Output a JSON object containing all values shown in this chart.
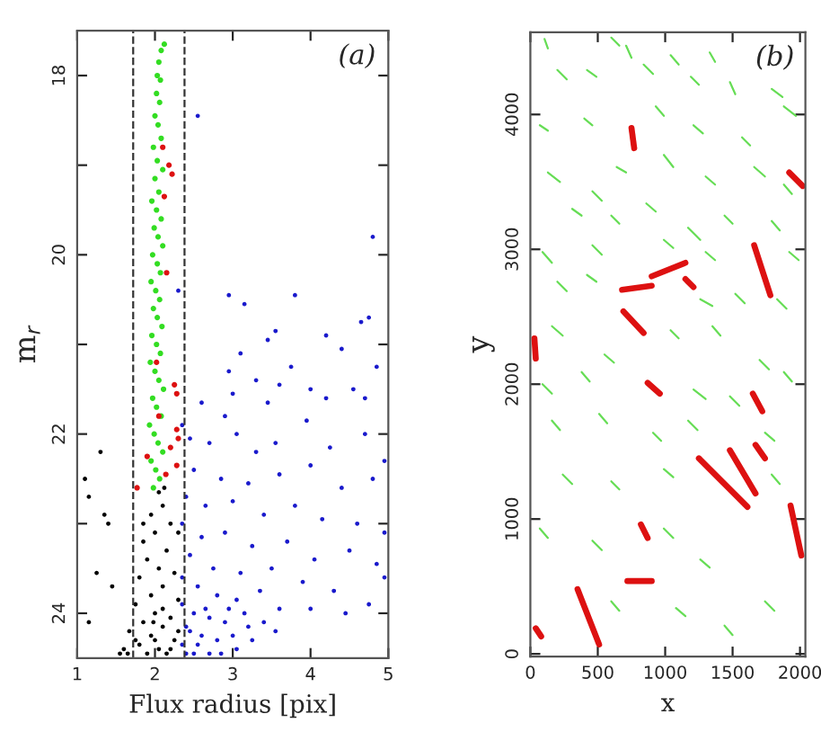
{
  "chart_data": [
    {
      "type": "scatter",
      "xlabel": "Flux radius [pix]",
      "ylabel": "m$_{r}$",
      "annotations": [
        "(a)"
      ],
      "marker": "circle",
      "xlim": [
        1,
        5
      ],
      "ylim": [
        24.5,
        17.5
      ],
      "xticks": [
        1,
        2,
        3,
        4,
        5
      ],
      "yticks": [
        18,
        {
          "value": 19,
          "label": null
        },
        20,
        {
          "value": 21,
          "label": null
        },
        22,
        {
          "value": 23,
          "label": null
        },
        24
      ],
      "ref_lines": [
        {
          "axis": "x",
          "value": 1.72,
          "line_style": "dashed",
          "color": "#333333"
        },
        {
          "axis": "x",
          "value": 2.38,
          "line_style": "dashed",
          "color": "#333333"
        }
      ],
      "series": [
        {
          "color": "#000000",
          "x": [
            1.1,
            1.3,
            1.35,
            1.15,
            1.25,
            1.45,
            1.15,
            1.4,
            2.05,
            2.1,
            1.95,
            2.2,
            2.0,
            1.85,
            2.15,
            1.9,
            2.05,
            2.25,
            1.8,
            2.1,
            1.95,
            2.3,
            1.75,
            2.0,
            2.2,
            1.85,
            2.1,
            1.67,
            1.95,
            2.25,
            1.8,
            2.05,
            1.65,
            1.9,
            2.15,
            2.3,
            1.6,
            1.75,
            2.0,
            2.2,
            1.55,
            1.85,
            2.3,
            2.12,
            1.98,
            2.1
          ],
          "values": [
            22.5,
            22.2,
            22.9,
            22.7,
            23.55,
            23.7,
            24.1,
            23.0,
            22.65,
            22.8,
            22.9,
            23.0,
            23.1,
            23.2,
            23.3,
            23.4,
            23.5,
            23.55,
            23.6,
            23.7,
            23.8,
            23.85,
            23.9,
            24.0,
            24.05,
            24.1,
            24.15,
            24.2,
            24.25,
            24.3,
            24.35,
            24.4,
            24.45,
            24.45,
            24.45,
            24.2,
            24.4,
            24.3,
            24.3,
            24.4,
            24.45,
            23.0,
            23.1,
            22.6,
            24.1,
            23.95
          ]
        },
        {
          "color": "#1a1acc",
          "x": [
            2.55,
            4.8,
            2.95,
            3.15,
            3.8,
            2.3,
            4.75,
            4.65,
            3.55,
            3.45,
            4.2,
            4.4,
            4.85,
            3.1,
            2.95,
            3.75,
            4.0,
            3.3,
            3.6,
            2.6,
            2.9,
            4.55,
            4.7,
            3.45,
            4.2,
            3.0,
            2.35,
            2.45,
            2.7,
            3.05,
            3.3,
            3.55,
            3.95,
            4.25,
            4.7,
            4.95,
            2.5,
            2.85,
            3.2,
            3.6,
            4.0,
            4.4,
            4.8,
            2.4,
            2.65,
            3.0,
            3.4,
            3.8,
            4.15,
            4.6,
            4.95,
            2.35,
            2.6,
            2.9,
            3.25,
            3.7,
            4.05,
            4.5,
            4.85,
            2.45,
            2.75,
            3.1,
            3.5,
            3.9,
            4.3,
            4.95,
            4.75,
            2.35,
            2.55,
            2.8,
            3.05,
            3.35,
            3.6,
            4.0,
            4.45,
            2.35,
            2.5,
            2.7,
            2.9,
            3.15,
            3.4,
            2.4,
            2.6,
            2.8,
            3.0,
            3.25,
            2.35,
            2.5,
            2.7,
            2.45,
            2.65,
            2.95,
            3.2,
            2.55,
            2.85,
            3.55,
            2.4,
            3.05
          ],
          "values": [
            18.45,
            19.8,
            20.45,
            20.55,
            20.45,
            20.4,
            20.7,
            20.75,
            20.85,
            20.95,
            20.9,
            21.05,
            21.25,
            21.1,
            21.3,
            21.25,
            21.5,
            21.4,
            21.45,
            21.65,
            21.8,
            21.5,
            21.6,
            21.65,
            21.6,
            21.55,
            21.9,
            22.05,
            22.1,
            22.0,
            22.2,
            22.1,
            21.85,
            22.15,
            22.0,
            22.3,
            22.4,
            22.5,
            22.55,
            22.45,
            22.35,
            22.6,
            22.5,
            22.7,
            22.8,
            22.75,
            22.9,
            22.8,
            22.95,
            23.0,
            23.1,
            23.0,
            23.15,
            23.1,
            23.25,
            23.2,
            23.4,
            23.3,
            23.45,
            23.35,
            23.5,
            23.55,
            23.5,
            23.65,
            23.75,
            23.6,
            23.9,
            23.6,
            23.7,
            23.8,
            23.85,
            23.75,
            23.95,
            23.95,
            24.0,
            23.9,
            24.0,
            24.05,
            24.1,
            24.0,
            24.1,
            24.15,
            24.25,
            24.3,
            24.25,
            24.3,
            24.35,
            24.45,
            24.45,
            24.2,
            23.95,
            23.95,
            24.15,
            24.35,
            24.45,
            24.2,
            24.45,
            24.4
          ]
        },
        {
          "color": "#33dd22",
          "x": [
            2.12,
            2.08,
            2.05,
            2.03,
            2.07,
            2.02,
            2.06,
            2.0,
            2.04,
            2.08,
            1.98,
            2.03,
            2.1,
            2.0,
            2.05,
            1.96,
            2.02,
            2.08,
            1.99,
            2.04,
            2.1,
            1.97,
            2.03,
            2.07,
            1.95,
            2.01,
            2.06,
            1.98,
            2.03,
            2.09,
            1.96,
            2.02,
            2.07,
            1.94,
            2.0,
            2.05,
            2.11,
            1.97,
            2.02,
            2.08,
            1.93,
            1.99,
            2.04,
            2.1,
            1.95,
            2.01,
            2.06,
            1.98
          ],
          "values": [
            17.65,
            17.72,
            17.85,
            18.0,
            18.05,
            18.2,
            18.3,
            18.45,
            18.55,
            18.7,
            18.8,
            18.95,
            19.05,
            19.15,
            19.3,
            19.4,
            19.5,
            19.6,
            19.7,
            19.8,
            19.9,
            20.0,
            20.1,
            20.2,
            20.3,
            20.4,
            20.5,
            20.6,
            20.7,
            20.8,
            20.9,
            21.0,
            21.1,
            21.2,
            21.3,
            21.4,
            21.5,
            21.6,
            21.7,
            21.8,
            21.9,
            22.0,
            22.1,
            22.2,
            22.3,
            22.4,
            22.5,
            22.6
          ]
        },
        {
          "color": "#dd1111",
          "x": [
            2.18,
            2.22,
            2.1,
            2.12,
            2.15,
            2.25,
            2.28,
            2.02,
            2.05,
            2.28,
            2.3,
            2.2,
            1.9,
            2.28,
            1.77,
            2.14
          ],
          "values": [
            19.0,
            19.1,
            18.8,
            19.35,
            20.2,
            21.45,
            21.55,
            21.2,
            21.8,
            21.95,
            22.05,
            22.15,
            22.25,
            22.35,
            22.6,
            22.45
          ]
        }
      ]
    },
    {
      "type": "line",
      "xlabel": "x",
      "ylabel": "y",
      "annotations": [
        "(b)"
      ],
      "marker": "none",
      "xlim": [
        0,
        2040
      ],
      "ylim": [
        -20,
        4610
      ],
      "xticks": [
        0,
        500,
        1000,
        1500,
        2000
      ],
      "yticks": [
        0,
        1000,
        2000,
        3000,
        4000
      ],
      "series": [
        {
          "color": "#66dd55",
          "x": [
            105,
            130
          ],
          "values": [
            4560,
            4490
          ]
        },
        {
          "color": "#66dd55",
          "x": [
            200,
            270
          ],
          "values": [
            4330,
            4260
          ]
        },
        {
          "color": "#66dd55",
          "x": [
            420,
            490
          ],
          "values": [
            4330,
            4280
          ]
        },
        {
          "color": "#66dd55",
          "x": [
            600,
            660
          ],
          "values": [
            4570,
            4510
          ]
        },
        {
          "color": "#66dd55",
          "x": [
            710,
            750
          ],
          "values": [
            4510,
            4420
          ]
        },
        {
          "color": "#66dd55",
          "x": [
            840,
            910
          ],
          "values": [
            4370,
            4300
          ]
        },
        {
          "color": "#66dd55",
          "x": [
            1040,
            1100
          ],
          "values": [
            4440,
            4370
          ]
        },
        {
          "color": "#66dd55",
          "x": [
            1190,
            1250
          ],
          "values": [
            4280,
            4220
          ]
        },
        {
          "color": "#66dd55",
          "x": [
            1330,
            1370
          ],
          "values": [
            4460,
            4390
          ]
        },
        {
          "color": "#66dd55",
          "x": [
            1480,
            1520
          ],
          "values": [
            4240,
            4150
          ]
        },
        {
          "color": "#66dd55",
          "x": [
            1790,
            1870
          ],
          "values": [
            4190,
            4130
          ]
        },
        {
          "color": "#66dd55",
          "x": [
            1880,
            1970
          ],
          "values": [
            4060,
            3990
          ]
        },
        {
          "color": "#66dd55",
          "x": [
            70,
            130
          ],
          "values": [
            3920,
            3880
          ]
        },
        {
          "color": "#66dd55",
          "x": [
            400,
            460
          ],
          "values": [
            3970,
            3920
          ]
        },
        {
          "color": "#66dd55",
          "x": [
            930,
            990
          ],
          "values": [
            4060,
            3990
          ]
        },
        {
          "color": "#66dd55",
          "x": [
            1210,
            1280
          ],
          "values": [
            3920,
            3860
          ]
        },
        {
          "color": "#66dd55",
          "x": [
            1570,
            1630
          ],
          "values": [
            3830,
            3770
          ]
        },
        {
          "color": "#66dd55",
          "x": [
            130,
            220
          ],
          "values": [
            3570,
            3500
          ]
        },
        {
          "color": "#66dd55",
          "x": [
            460,
            530
          ],
          "values": [
            3430,
            3360
          ]
        },
        {
          "color": "#66dd55",
          "x": [
            640,
            710
          ],
          "values": [
            3610,
            3570
          ]
        },
        {
          "color": "#66dd55",
          "x": [
            990,
            1060
          ],
          "values": [
            3700,
            3610
          ]
        },
        {
          "color": "#66dd55",
          "x": [
            1300,
            1370
          ],
          "values": [
            3540,
            3480
          ]
        },
        {
          "color": "#66dd55",
          "x": [
            1660,
            1740
          ],
          "values": [
            3610,
            3540
          ]
        },
        {
          "color": "#66dd55",
          "x": [
            1880,
            1940
          ],
          "values": [
            3480,
            3410
          ]
        },
        {
          "color": "#66dd55",
          "x": [
            310,
            380
          ],
          "values": [
            3300,
            3250
          ]
        },
        {
          "color": "#66dd55",
          "x": [
            600,
            660
          ],
          "values": [
            3250,
            3190
          ]
        },
        {
          "color": "#66dd55",
          "x": [
            860,
            930
          ],
          "values": [
            3340,
            3280
          ]
        },
        {
          "color": "#66dd55",
          "x": [
            1170,
            1260
          ],
          "values": [
            3160,
            3070
          ]
        },
        {
          "color": "#66dd55",
          "x": [
            1440,
            1500
          ],
          "values": [
            3250,
            3190
          ]
        },
        {
          "color": "#66dd55",
          "x": [
            1790,
            1850
          ],
          "values": [
            3210,
            3140
          ]
        },
        {
          "color": "#66dd55",
          "x": [
            90,
            160
          ],
          "values": [
            2980,
            2900
          ]
        },
        {
          "color": "#66dd55",
          "x": [
            460,
            530
          ],
          "values": [
            3030,
            2960
          ]
        },
        {
          "color": "#66dd55",
          "x": [
            990,
            1060
          ],
          "values": [
            3070,
            3010
          ]
        },
        {
          "color": "#66dd55",
          "x": [
            1300,
            1370
          ],
          "values": [
            2980,
            2920
          ]
        },
        {
          "color": "#66dd55",
          "x": [
            1920,
            1990
          ],
          "values": [
            2980,
            2920
          ]
        },
        {
          "color": "#66dd55",
          "x": [
            200,
            270
          ],
          "values": [
            2760,
            2690
          ]
        },
        {
          "color": "#66dd55",
          "x": [
            420,
            490
          ],
          "values": [
            2810,
            2760
          ]
        },
        {
          "color": "#66dd55",
          "x": [
            1260,
            1350
          ],
          "values": [
            2630,
            2580
          ]
        },
        {
          "color": "#66dd55",
          "x": [
            1520,
            1590
          ],
          "values": [
            2670,
            2600
          ]
        },
        {
          "color": "#66dd55",
          "x": [
            1830,
            1900
          ],
          "values": [
            2630,
            2560
          ]
        },
        {
          "color": "#66dd55",
          "x": [
            160,
            240
          ],
          "values": [
            2430,
            2360
          ]
        },
        {
          "color": "#66dd55",
          "x": [
            550,
            620
          ],
          "values": [
            2220,
            2160
          ]
        },
        {
          "color": "#66dd55",
          "x": [
            1040,
            1100
          ],
          "values": [
            2400,
            2340
          ]
        },
        {
          "color": "#66dd55",
          "x": [
            1350,
            1410
          ],
          "values": [
            2430,
            2360
          ]
        },
        {
          "color": "#66dd55",
          "x": [
            1700,
            1770
          ],
          "values": [
            2180,
            2110
          ]
        },
        {
          "color": "#66dd55",
          "x": [
            90,
            160
          ],
          "values": [
            2000,
            1930
          ]
        },
        {
          "color": "#66dd55",
          "x": [
            380,
            440
          ],
          "values": [
            2090,
            2020
          ]
        },
        {
          "color": "#66dd55",
          "x": [
            1210,
            1300
          ],
          "values": [
            1960,
            1890
          ]
        },
        {
          "color": "#66dd55",
          "x": [
            1480,
            1550
          ],
          "values": [
            1910,
            1840
          ]
        },
        {
          "color": "#66dd55",
          "x": [
            1880,
            1940
          ],
          "values": [
            2090,
            2020
          ]
        },
        {
          "color": "#66dd55",
          "x": [
            160,
            220
          ],
          "values": [
            1730,
            1660
          ]
        },
        {
          "color": "#66dd55",
          "x": [
            510,
            570
          ],
          "values": [
            1780,
            1710
          ]
        },
        {
          "color": "#66dd55",
          "x": [
            910,
            970
          ],
          "values": [
            1640,
            1580
          ]
        },
        {
          "color": "#66dd55",
          "x": [
            1170,
            1240
          ],
          "values": [
            1730,
            1660
          ]
        },
        {
          "color": "#66dd55",
          "x": [
            1740,
            1810
          ],
          "values": [
            1640,
            1580
          ]
        },
        {
          "color": "#66dd55",
          "x": [
            240,
            310
          ],
          "values": [
            1330,
            1260
          ]
        },
        {
          "color": "#66dd55",
          "x": [
            600,
            660
          ],
          "values": [
            1280,
            1220
          ]
        },
        {
          "color": "#66dd55",
          "x": [
            990,
            1060
          ],
          "values": [
            1370,
            1310
          ]
        },
        {
          "color": "#66dd55",
          "x": [
            1790,
            1850
          ],
          "values": [
            1330,
            1260
          ]
        },
        {
          "color": "#66dd55",
          "x": [
            70,
            130
          ],
          "values": [
            930,
            860
          ]
        },
        {
          "color": "#66dd55",
          "x": [
            460,
            530
          ],
          "values": [
            840,
            770
          ]
        },
        {
          "color": "#66dd55",
          "x": [
            990,
            1060
          ],
          "values": [
            930,
            860
          ]
        },
        {
          "color": "#66dd55",
          "x": [
            1260,
            1330
          ],
          "values": [
            700,
            640
          ]
        },
        {
          "color": "#66dd55",
          "x": [
            600,
            660
          ],
          "values": [
            390,
            320
          ]
        },
        {
          "color": "#66dd55",
          "x": [
            1080,
            1150
          ],
          "values": [
            340,
            280
          ]
        },
        {
          "color": "#66dd55",
          "x": [
            1440,
            1500
          ],
          "values": [
            210,
            140
          ]
        },
        {
          "color": "#66dd55",
          "x": [
            1740,
            1810
          ],
          "values": [
            390,
            320
          ]
        },
        {
          "color": "#dd1111",
          "x": [
            40,
            80
          ],
          "values": [
            190,
            130
          ]
        },
        {
          "color": "#dd1111",
          "x": [
            350,
            510
          ],
          "values": [
            480,
            70
          ]
        },
        {
          "color": "#dd1111",
          "x": [
            720,
            900
          ],
          "values": [
            540,
            540
          ]
        },
        {
          "color": "#dd1111",
          "x": [
            820,
            870
          ],
          "values": [
            960,
            860
          ]
        },
        {
          "color": "#dd1111",
          "x": [
            1250,
            1610
          ],
          "values": [
            1450,
            1090
          ]
        },
        {
          "color": "#dd1111",
          "x": [
            1480,
            1670
          ],
          "values": [
            1510,
            1190
          ]
        },
        {
          "color": "#dd1111",
          "x": [
            1670,
            1740
          ],
          "values": [
            1550,
            1450
          ]
        },
        {
          "color": "#dd1111",
          "x": [
            1650,
            1720
          ],
          "values": [
            1930,
            1800
          ]
        },
        {
          "color": "#dd1111",
          "x": [
            1930,
            2010
          ],
          "values": [
            1100,
            730
          ]
        },
        {
          "color": "#dd1111",
          "x": [
            870,
            960
          ],
          "values": [
            2010,
            1930
          ]
        },
        {
          "color": "#dd1111",
          "x": [
            690,
            840
          ],
          "values": [
            2540,
            2380
          ]
        },
        {
          "color": "#dd1111",
          "x": [
            30,
            40
          ],
          "values": [
            2340,
            2190
          ]
        },
        {
          "color": "#dd1111",
          "x": [
            680,
            900
          ],
          "values": [
            2700,
            2730
          ]
        },
        {
          "color": "#dd1111",
          "x": [
            900,
            1150
          ],
          "values": [
            2800,
            2900
          ]
        },
        {
          "color": "#dd1111",
          "x": [
            1150,
            1210
          ],
          "values": [
            2780,
            2720
          ]
        },
        {
          "color": "#dd1111",
          "x": [
            1660,
            1780
          ],
          "values": [
            3030,
            2660
          ]
        },
        {
          "color": "#dd1111",
          "x": [
            750,
            770
          ],
          "values": [
            3900,
            3750
          ]
        },
        {
          "color": "#dd1111",
          "x": [
            1920,
            2020
          ],
          "values": [
            3570,
            3470
          ]
        }
      ]
    }
  ]
}
